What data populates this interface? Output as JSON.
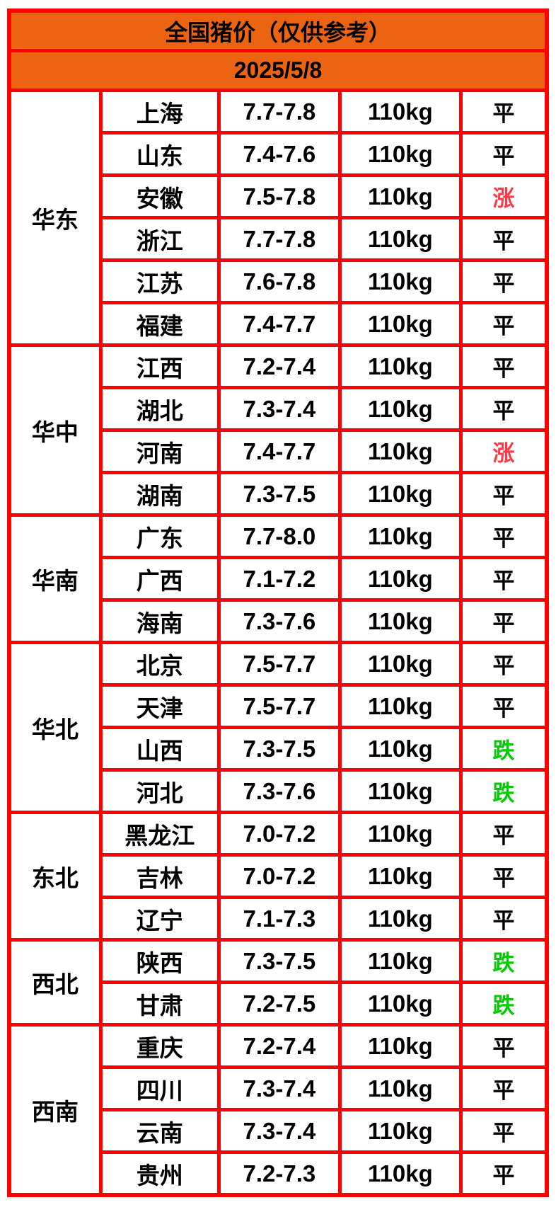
{
  "title": "全国猪价（仅供参考）",
  "date": "2025/5/8",
  "colors": {
    "header_bg": "#EC6411",
    "border": "#FE0000",
    "text": "#000000",
    "up": "#FB3A49",
    "down": "#00CC00",
    "flat": "#000000"
  },
  "chart_data": {
    "type": "table",
    "title": "全国猪价（仅供参考）",
    "date": "2025/5/8",
    "unit_weight": "110kg",
    "regions": [
      {
        "name": "华东",
        "rows": [
          {
            "province": "上海",
            "price": "7.7-7.8",
            "weight": "110kg",
            "status": "平",
            "trend": "flat"
          },
          {
            "province": "山东",
            "price": "7.4-7.6",
            "weight": "110kg",
            "status": "平",
            "trend": "flat"
          },
          {
            "province": "安徽",
            "price": "7.5-7.8",
            "weight": "110kg",
            "status": "涨",
            "trend": "up"
          },
          {
            "province": "浙江",
            "price": "7.7-7.8",
            "weight": "110kg",
            "status": "平",
            "trend": "flat"
          },
          {
            "province": "江苏",
            "price": "7.6-7.8",
            "weight": "110kg",
            "status": "平",
            "trend": "flat"
          },
          {
            "province": "福建",
            "price": "7.4-7.7",
            "weight": "110kg",
            "status": "平",
            "trend": "flat"
          }
        ]
      },
      {
        "name": "华中",
        "rows": [
          {
            "province": "江西",
            "price": "7.2-7.4",
            "weight": "110kg",
            "status": "平",
            "trend": "flat"
          },
          {
            "province": "湖北",
            "price": "7.3-7.4",
            "weight": "110kg",
            "status": "平",
            "trend": "flat"
          },
          {
            "province": "河南",
            "price": "7.4-7.7",
            "weight": "110kg",
            "status": "涨",
            "trend": "up"
          },
          {
            "province": "湖南",
            "price": "7.3-7.5",
            "weight": "110kg",
            "status": "平",
            "trend": "flat"
          }
        ]
      },
      {
        "name": "华南",
        "rows": [
          {
            "province": "广东",
            "price": "7.7-8.0",
            "weight": "110kg",
            "status": "平",
            "trend": "flat"
          },
          {
            "province": "广西",
            "price": "7.1-7.2",
            "weight": "110kg",
            "status": "平",
            "trend": "flat"
          },
          {
            "province": "海南",
            "price": "7.3-7.6",
            "weight": "110kg",
            "status": "平",
            "trend": "flat"
          }
        ]
      },
      {
        "name": "华北",
        "rows": [
          {
            "province": "北京",
            "price": "7.5-7.7",
            "weight": "110kg",
            "status": "平",
            "trend": "flat"
          },
          {
            "province": "天津",
            "price": "7.5-7.7",
            "weight": "110kg",
            "status": "平",
            "trend": "flat"
          },
          {
            "province": "山西",
            "price": "7.3-7.5",
            "weight": "110kg",
            "status": "跌",
            "trend": "down"
          },
          {
            "province": "河北",
            "price": "7.3-7.6",
            "weight": "110kg",
            "status": "跌",
            "trend": "down"
          }
        ]
      },
      {
        "name": "东北",
        "rows": [
          {
            "province": "黑龙江",
            "price": "7.0-7.2",
            "weight": "110kg",
            "status": "平",
            "trend": "flat"
          },
          {
            "province": "吉林",
            "price": "7.0-7.2",
            "weight": "110kg",
            "status": "平",
            "trend": "flat"
          },
          {
            "province": "辽宁",
            "price": "7.1-7.3",
            "weight": "110kg",
            "status": "平",
            "trend": "flat"
          }
        ]
      },
      {
        "name": "西北",
        "rows": [
          {
            "province": "陕西",
            "price": "7.3-7.5",
            "weight": "110kg",
            "status": "跌",
            "trend": "down"
          },
          {
            "province": "甘肃",
            "price": "7.2-7.5",
            "weight": "110kg",
            "status": "跌",
            "trend": "down"
          }
        ]
      },
      {
        "name": "西南",
        "rows": [
          {
            "province": "重庆",
            "price": "7.2-7.4",
            "weight": "110kg",
            "status": "平",
            "trend": "flat"
          },
          {
            "province": "四川",
            "price": "7.3-7.4",
            "weight": "110kg",
            "status": "平",
            "trend": "flat"
          },
          {
            "province": "云南",
            "price": "7.3-7.4",
            "weight": "110kg",
            "status": "平",
            "trend": "flat"
          },
          {
            "province": "贵州",
            "price": "7.2-7.3",
            "weight": "110kg",
            "status": "平",
            "trend": "flat"
          }
        ]
      }
    ]
  }
}
